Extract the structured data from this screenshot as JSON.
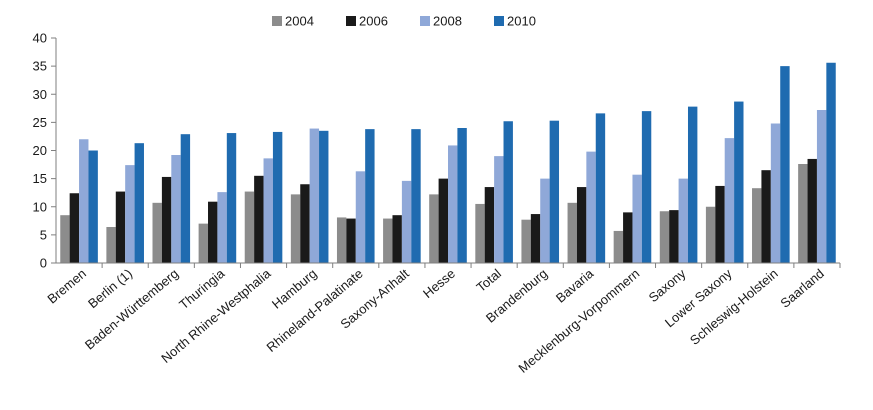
{
  "chart_data": {
    "type": "bar",
    "title": "",
    "xlabel": "",
    "ylabel": "",
    "ylim": [
      0,
      40
    ],
    "yticks": [
      0,
      5,
      10,
      15,
      20,
      25,
      30,
      35,
      40
    ],
    "grid": false,
    "legend_position": "top-center",
    "categories": [
      "Bremen",
      "Berlin (1)",
      "Baden-Württemberg",
      "Thuringia",
      "North Rhine-Westphalia",
      "Hamburg",
      "Rhineland-Palatinate",
      "Saxony-Anhalt",
      "Hesse",
      "Total",
      "Brandenburg",
      "Bavaria",
      "Mecklenburg-Vorpommern",
      "Saxony",
      "Lower Saxony",
      "Schleswig-Holstein",
      "Saarland"
    ],
    "series": [
      {
        "name": "2004",
        "color": "#8c8c8c",
        "values": [
          8.5,
          6.4,
          10.7,
          7.0,
          12.7,
          12.2,
          8.1,
          7.9,
          12.2,
          10.5,
          7.7,
          10.7,
          5.7,
          9.2,
          10.0,
          13.3,
          17.6
        ]
      },
      {
        "name": "2006",
        "color": "#1a1a1a",
        "values": [
          12.4,
          12.7,
          15.3,
          10.9,
          15.5,
          14.0,
          7.9,
          8.5,
          15.0,
          13.5,
          8.7,
          13.5,
          9.0,
          9.4,
          13.7,
          16.5,
          18.5
        ]
      },
      {
        "name": "2008",
        "color": "#8fa8d8",
        "values": [
          22.0,
          17.4,
          19.2,
          12.6,
          18.6,
          23.9,
          16.3,
          14.6,
          20.9,
          19.0,
          15.0,
          19.8,
          15.7,
          15.0,
          22.2,
          24.8,
          27.2
        ]
      },
      {
        "name": "2010",
        "color": "#1f6bb0",
        "values": [
          20.0,
          21.3,
          22.9,
          23.1,
          23.3,
          23.5,
          23.8,
          23.8,
          24.0,
          25.2,
          25.3,
          26.6,
          27.0,
          27.8,
          28.7,
          35.0,
          35.6
        ]
      }
    ]
  }
}
